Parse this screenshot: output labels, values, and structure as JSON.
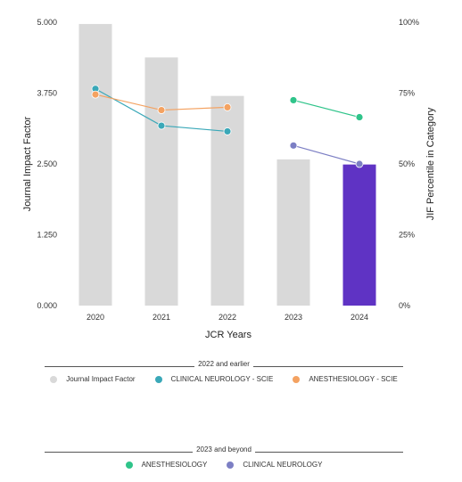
{
  "chart_data": {
    "type": "bar",
    "xlabel": "JCR Years",
    "ylabel": "Journal Impact Factor",
    "y2label": "JIF Percentile in Category",
    "categories": [
      "2020",
      "2021",
      "2022",
      "2023",
      "2024"
    ],
    "ylim": [
      0,
      5
    ],
    "y_ticks": [
      "0.000",
      "1.250",
      "2.500",
      "3.750",
      "5.000"
    ],
    "y2lim": [
      0,
      100
    ],
    "y2_ticks": [
      "0%",
      "25%",
      "50%",
      "75%",
      "100%"
    ],
    "bars": {
      "name": "Journal Impact Factor",
      "values": [
        4.97,
        4.38,
        3.7,
        2.58,
        2.49
      ],
      "colors": [
        "#d9d9d9",
        "#d9d9d9",
        "#d9d9d9",
        "#d9d9d9",
        "#5f33c4"
      ]
    },
    "series": [
      {
        "name": "CLINICAL NEUROLOGY - SCIE",
        "axis": "right",
        "color": "#3aa8b8",
        "x": [
          "2020",
          "2021",
          "2022"
        ],
        "values": [
          76.5,
          63.5,
          61.5
        ]
      },
      {
        "name": "ANESTHESIOLOGY - SCIE",
        "axis": "right",
        "color": "#f4a261",
        "x": [
          "2020",
          "2021",
          "2022"
        ],
        "values": [
          74.5,
          69.0,
          70.0
        ]
      },
      {
        "name": "ANESTHESIOLOGY",
        "axis": "right",
        "color": "#2fc48a",
        "x": [
          "2023",
          "2024"
        ],
        "values": [
          72.5,
          66.5
        ]
      },
      {
        "name": "CLINICAL NEUROLOGY",
        "axis": "right",
        "color": "#7c7fc4",
        "x": [
          "2023",
          "2024"
        ],
        "values": [
          56.5,
          50.0
        ]
      }
    ],
    "grid": false,
    "legend_position": "bottom"
  },
  "legend": {
    "group1": {
      "title": "2022 and earlier",
      "items": [
        {
          "label": "Journal Impact Factor",
          "color": "#d9d9d9"
        },
        {
          "label": "CLINICAL NEUROLOGY - SCIE",
          "color": "#3aa8b8"
        },
        {
          "label": "ANESTHESIOLOGY - SCIE",
          "color": "#f4a261"
        }
      ]
    },
    "group2": {
      "title": "2023 and beyond",
      "items": [
        {
          "label": "ANESTHESIOLOGY",
          "color": "#2fc48a"
        },
        {
          "label": "CLINICAL NEUROLOGY",
          "color": "#7c7fc4"
        }
      ]
    }
  }
}
